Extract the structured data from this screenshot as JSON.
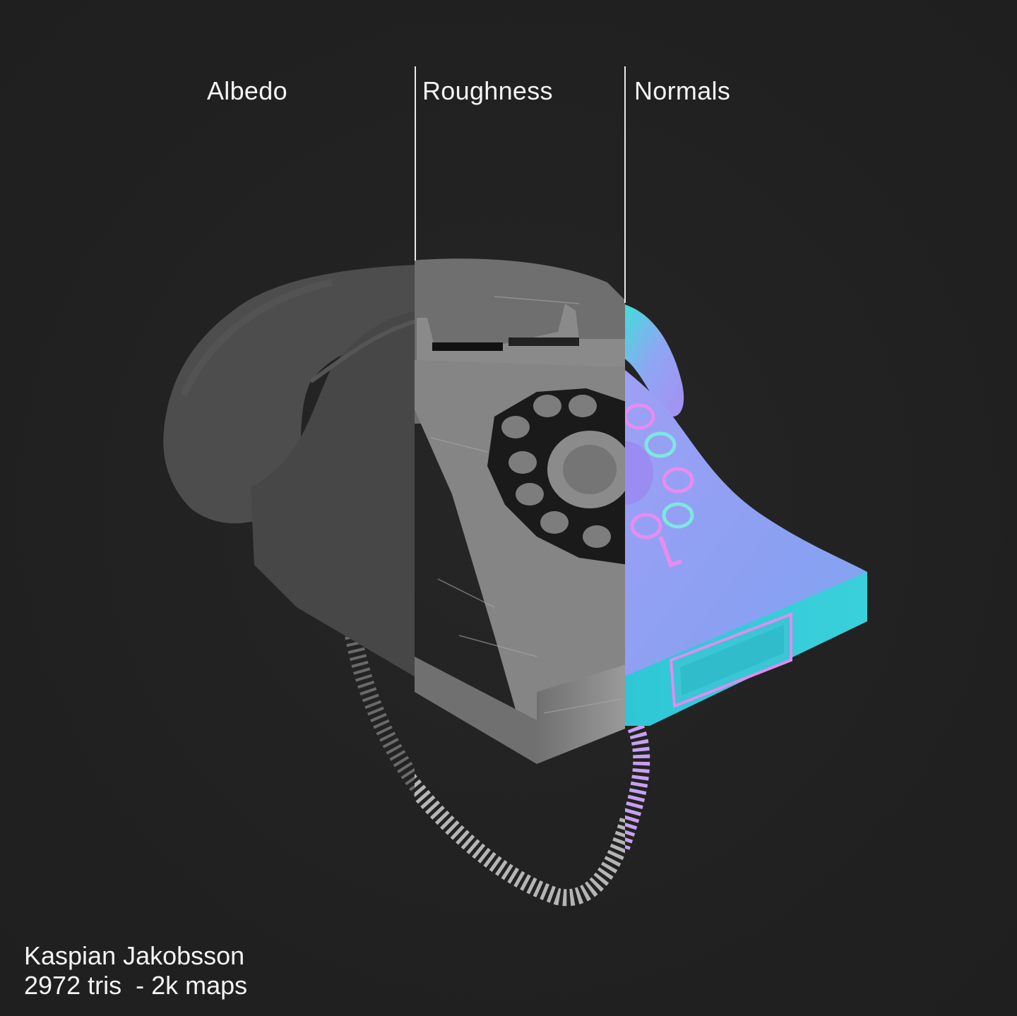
{
  "labels": {
    "albedo": "Albedo",
    "roughness": "Roughness",
    "normals": "Normals"
  },
  "credits": {
    "author": "Kaspian Jakobsson",
    "stats": "2972 tris  - 2k maps"
  },
  "colors": {
    "background": "#222222",
    "text": "#f4f4f4",
    "albedo_gray": "#4a4a4a",
    "roughness_gray": "#7d7d7d",
    "normal_blue": "#8c9cf2",
    "normal_cyan": "#2ec8d6"
  }
}
